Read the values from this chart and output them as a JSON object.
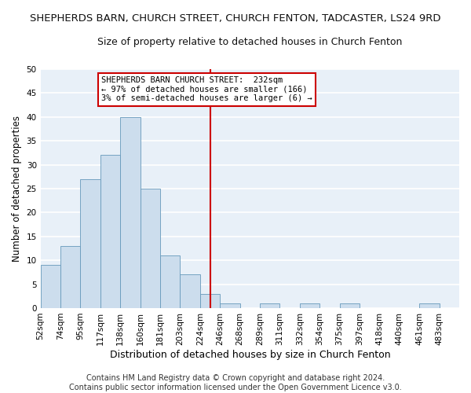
{
  "title": "SHEPHERDS BARN, CHURCH STREET, CHURCH FENTON, TADCASTER, LS24 9RD",
  "subtitle": "Size of property relative to detached houses in Church Fenton",
  "xlabel": "Distribution of detached houses by size in Church Fenton",
  "ylabel": "Number of detached properties",
  "bar_color": "#ccdded",
  "bar_edge_color": "#6699bb",
  "background_color": "#e8f0f8",
  "grid_color": "#ffffff",
  "bin_labels": [
    "52sqm",
    "74sqm",
    "95sqm",
    "117sqm",
    "138sqm",
    "160sqm",
    "181sqm",
    "203sqm",
    "224sqm",
    "246sqm",
    "268sqm",
    "289sqm",
    "311sqm",
    "332sqm",
    "354sqm",
    "375sqm",
    "397sqm",
    "418sqm",
    "440sqm",
    "461sqm",
    "483sqm"
  ],
  "values": [
    9,
    13,
    27,
    32,
    40,
    25,
    11,
    7,
    3,
    1,
    0,
    1,
    0,
    1,
    0,
    1,
    0,
    0,
    0,
    1,
    0
  ],
  "ylim": [
    0,
    50
  ],
  "yticks": [
    0,
    5,
    10,
    15,
    20,
    25,
    30,
    35,
    40,
    45,
    50
  ],
  "property_size_idx": 8.5,
  "vline_color": "#cc0000",
  "annotation_line1": "SHEPHERDS BARN CHURCH STREET:  232sqm",
  "annotation_line2": "← 97% of detached houses are smaller (166)",
  "annotation_line3": "3% of semi-detached houses are larger (6) →",
  "annotation_box_color": "#ffffff",
  "annotation_box_edge": "#cc0000",
  "footer_text": "Contains HM Land Registry data © Crown copyright and database right 2024.\nContains public sector information licensed under the Open Government Licence v3.0.",
  "title_fontsize": 9.5,
  "subtitle_fontsize": 9,
  "xlabel_fontsize": 9,
  "ylabel_fontsize": 8.5,
  "tick_fontsize": 7.5,
  "annotation_fontsize": 7.5,
  "footer_fontsize": 7
}
